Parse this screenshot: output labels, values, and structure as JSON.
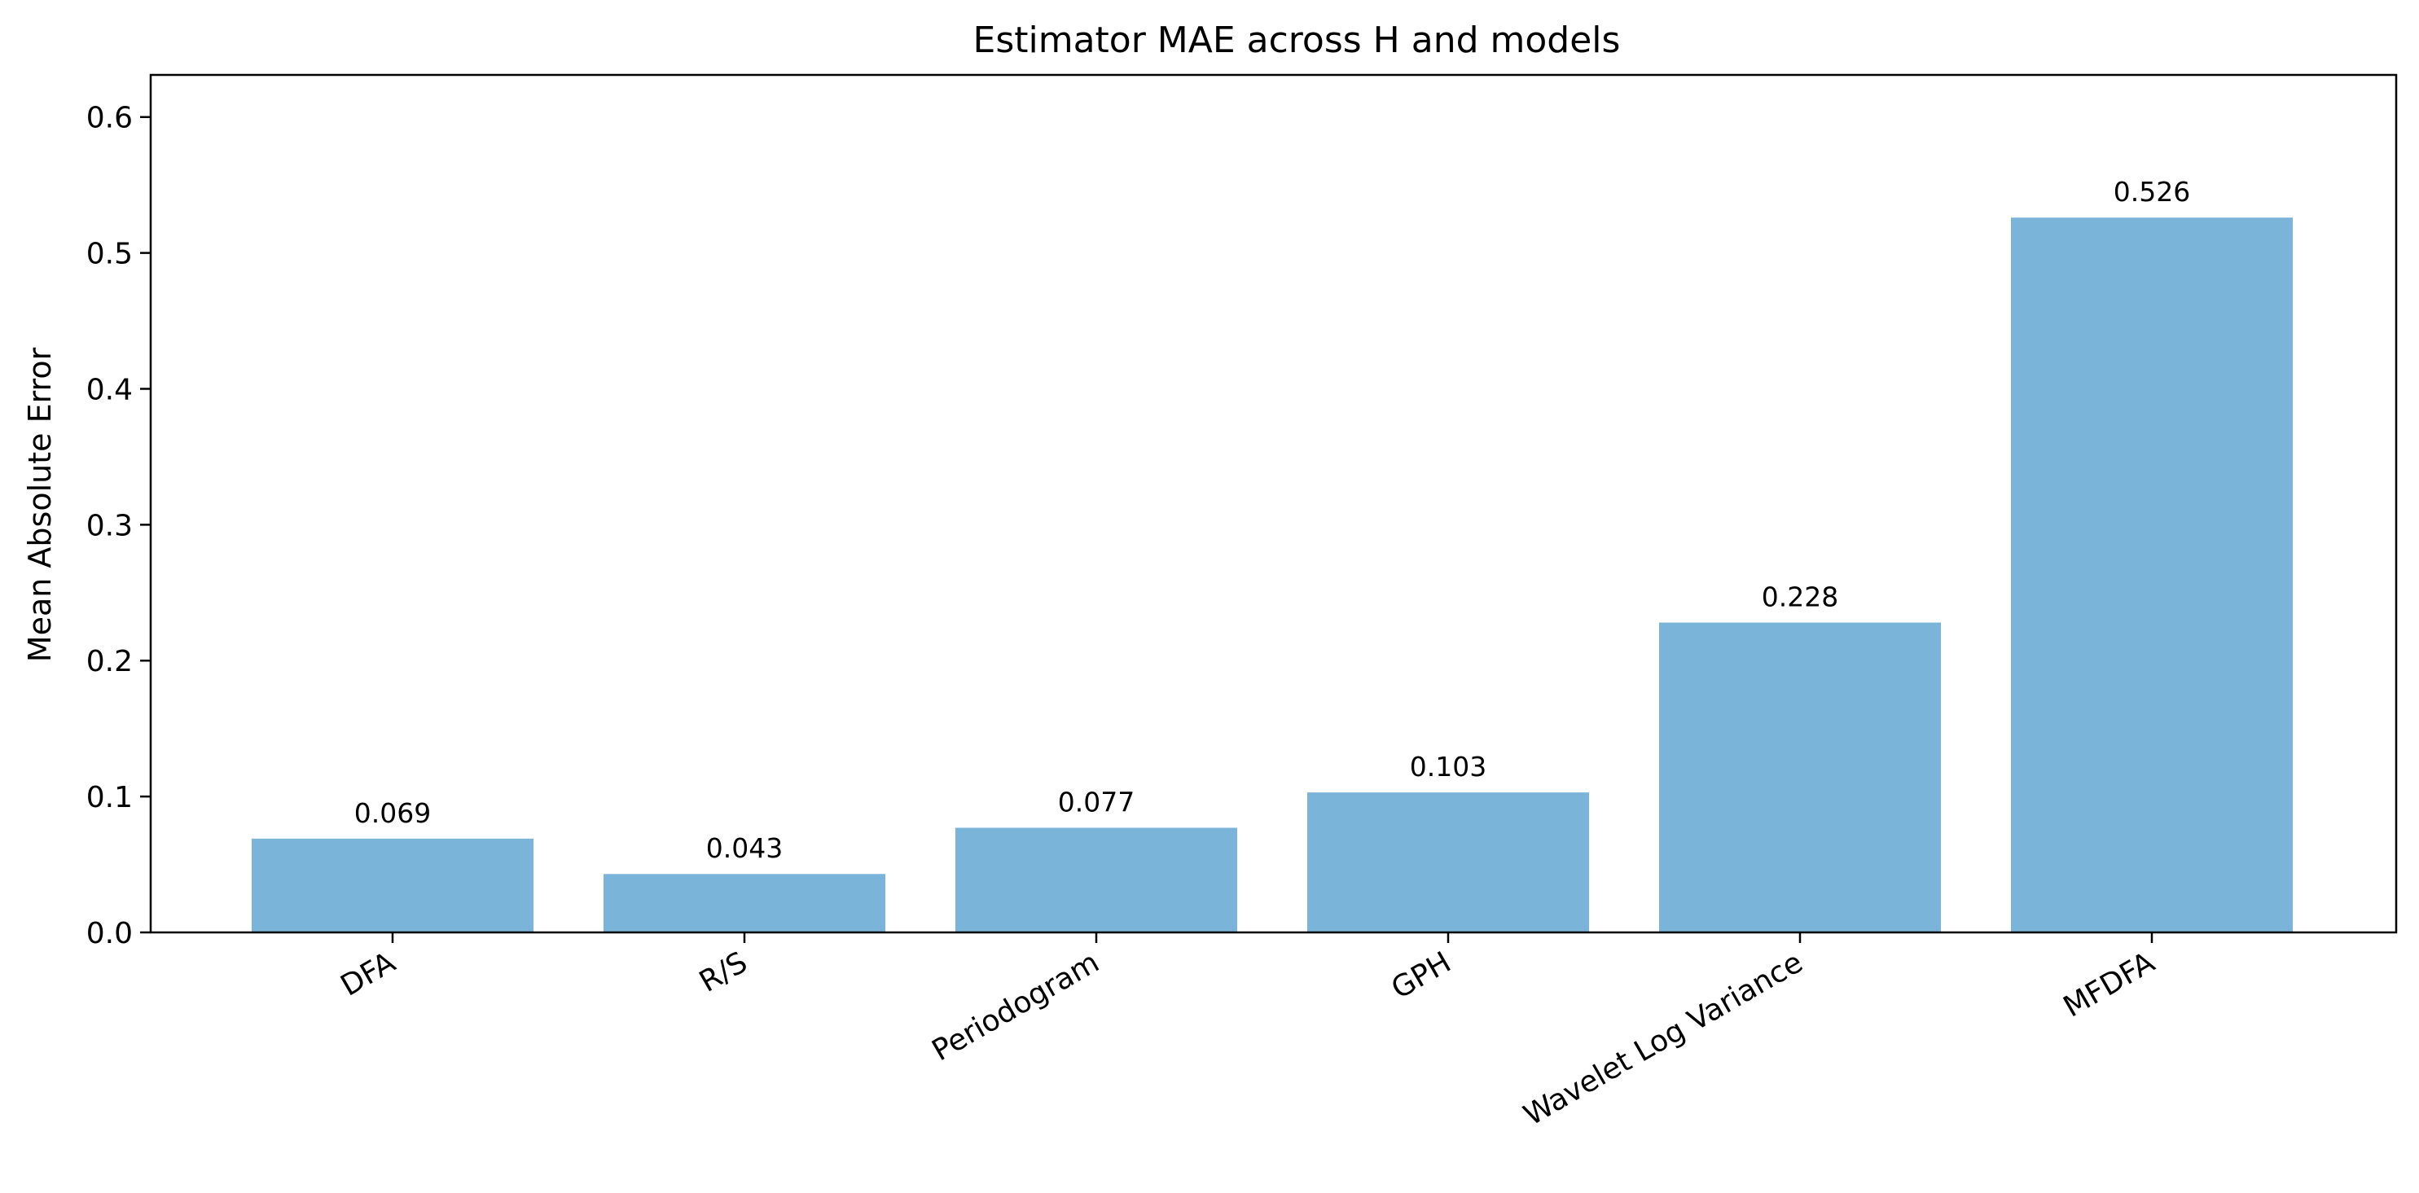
{
  "chart_data": {
    "type": "bar",
    "title": "Estimator MAE across H and models",
    "xlabel": "",
    "ylabel": "Mean Absolute Error",
    "categories": [
      "DFA",
      "R/S",
      "Periodogram",
      "GPH",
      "Wavelet Log Variance",
      "MFDFA"
    ],
    "values": [
      0.069,
      0.043,
      0.077,
      0.103,
      0.228,
      0.526
    ],
    "value_labels": [
      "0.069",
      "0.043",
      "0.077",
      "0.103",
      "0.228",
      "0.526"
    ],
    "ylim": [
      0,
      0.631
    ],
    "yticks": [
      0.0,
      0.1,
      0.2,
      0.3,
      0.4,
      0.5,
      0.6
    ],
    "ytick_labels": [
      "0.0",
      "0.1",
      "0.2",
      "0.3",
      "0.4",
      "0.5",
      "0.6"
    ],
    "bar_color": "#7ab5d9",
    "grid": false,
    "legend": "none"
  }
}
